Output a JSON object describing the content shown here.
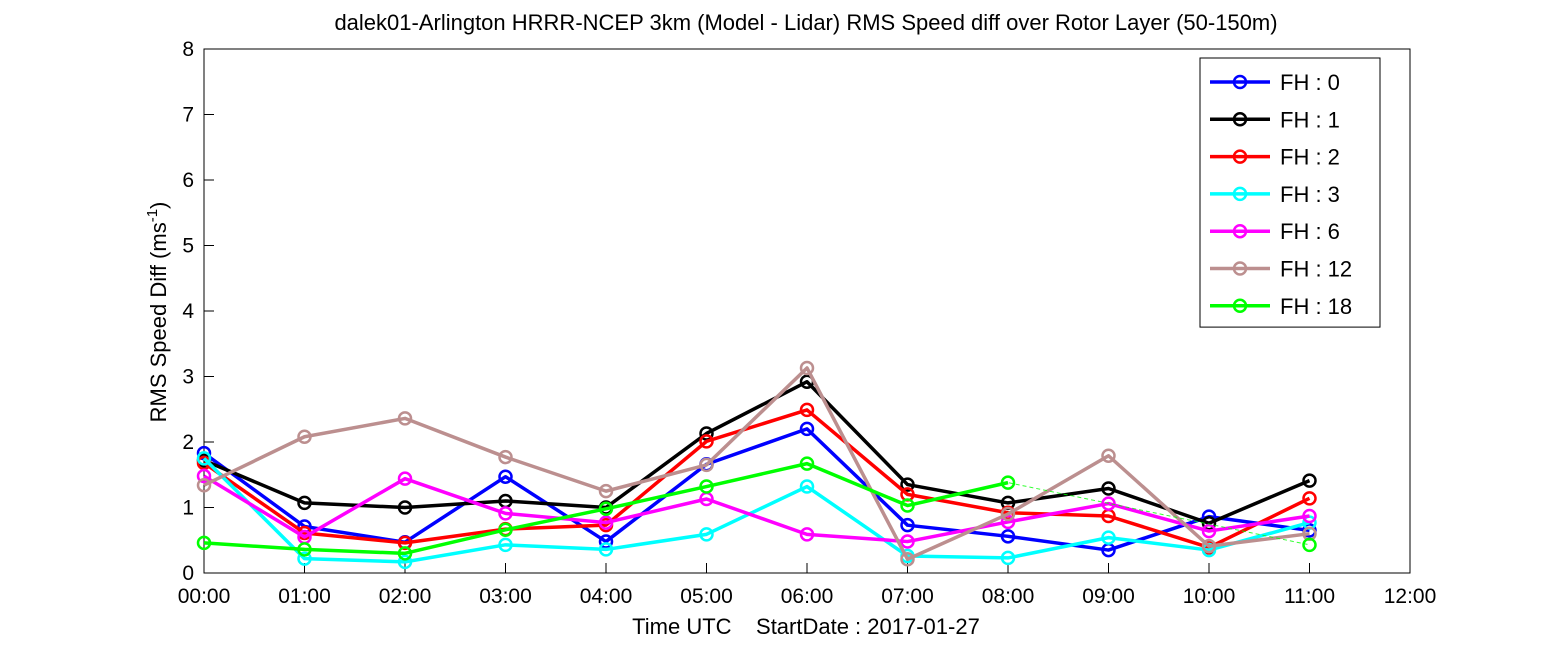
{
  "chart_data": {
    "type": "line",
    "title": "dalek01-Arlington HRRR-NCEP 3km (Model - Lidar) RMS Speed diff over Rotor Layer (50-150m)",
    "xlabel": "Time UTC    StartDate : 2017-01-27",
    "ylabel": "RMS Speed Diff (ms",
    "ylabel_superscript": "-1",
    "ylabel_suffix": ")",
    "xlim": [
      0,
      12
    ],
    "ylim": [
      0,
      8
    ],
    "x_ticks": [
      0,
      1,
      2,
      3,
      4,
      5,
      6,
      7,
      8,
      9,
      10,
      11,
      12
    ],
    "x_tick_labels": [
      "00:00",
      "01:00",
      "02:00",
      "03:00",
      "04:00",
      "05:00",
      "06:00",
      "07:00",
      "08:00",
      "09:00",
      "10:00",
      "11:00",
      "12:00"
    ],
    "y_ticks": [
      0,
      1,
      2,
      3,
      4,
      5,
      6,
      7,
      8
    ],
    "y_tick_labels": [
      "0",
      "1",
      "2",
      "3",
      "4",
      "5",
      "6",
      "7",
      "8"
    ],
    "grid": false,
    "legend_position": "top-right",
    "x": [
      0,
      1,
      2,
      3,
      4,
      5,
      6,
      7,
      8,
      9,
      10,
      11
    ],
    "series": [
      {
        "name": "FH : 0",
        "color": "#0000ff",
        "values": [
          1.83,
          0.71,
          0.47,
          1.47,
          0.48,
          1.66,
          2.2,
          0.73,
          0.56,
          0.35,
          0.86,
          0.65
        ]
      },
      {
        "name": "FH : 1",
        "color": "#000000",
        "values": [
          1.72,
          1.07,
          1.0,
          1.1,
          1.0,
          2.13,
          2.92,
          1.35,
          1.07,
          1.29,
          0.76,
          1.41
        ]
      },
      {
        "name": "FH : 2",
        "color": "#ff0000",
        "values": [
          1.68,
          0.61,
          0.46,
          0.67,
          0.73,
          2.01,
          2.49,
          1.2,
          0.92,
          0.87,
          0.39,
          1.14
        ]
      },
      {
        "name": "FH : 3",
        "color": "#00ffff",
        "values": [
          1.75,
          0.22,
          0.17,
          0.43,
          0.36,
          0.59,
          1.32,
          0.26,
          0.23,
          0.54,
          0.35,
          0.77
        ]
      },
      {
        "name": "FH : 6",
        "color": "#ff00ff",
        "values": [
          1.48,
          0.55,
          1.44,
          0.91,
          0.77,
          1.13,
          0.59,
          0.48,
          0.78,
          1.06,
          0.64,
          0.87
        ]
      },
      {
        "name": "FH : 12",
        "color": "#bc8f8f",
        "values": [
          1.34,
          2.08,
          2.36,
          1.77,
          1.25,
          1.65,
          3.13,
          0.21,
          0.9,
          1.79,
          0.41,
          0.6
        ]
      },
      {
        "name": "FH : 18",
        "color": "#00ff00",
        "values": [
          0.46,
          0.36,
          0.3,
          0.66,
          0.98,
          1.32,
          1.67,
          1.03,
          1.38,
          null,
          null,
          0.43
        ]
      }
    ]
  }
}
